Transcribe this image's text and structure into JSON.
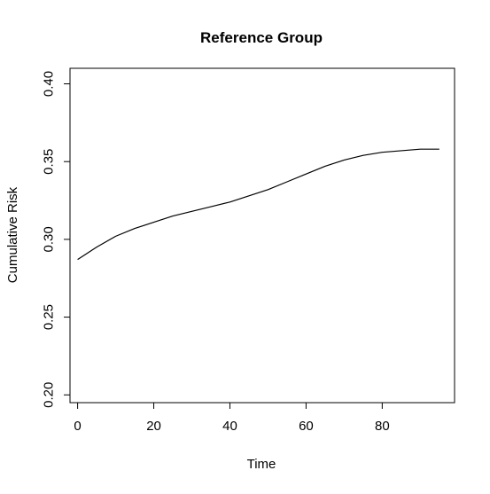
{
  "chart_data": {
    "type": "line",
    "title": "Reference Group",
    "xlabel": "Time",
    "ylabel": "Cumulative Risk",
    "xlim": [
      -2,
      99
    ],
    "ylim": [
      0.195,
      0.41
    ],
    "xticks": [
      0,
      20,
      40,
      60,
      80
    ],
    "yticks": [
      0.2,
      0.25,
      0.3,
      0.35,
      0.4
    ],
    "xtick_labels": [
      "0",
      "20",
      "40",
      "60",
      "80"
    ],
    "ytick_labels": [
      "0.20",
      "0.25",
      "0.30",
      "0.35",
      "0.40"
    ],
    "grid": false,
    "legend": "none",
    "series": [
      {
        "x": [
          0,
          5,
          10,
          15,
          20,
          25,
          30,
          35,
          40,
          45,
          50,
          55,
          60,
          65,
          70,
          75,
          80,
          85,
          90,
          95
        ],
        "y": [
          0.287,
          0.295,
          0.302,
          0.307,
          0.311,
          0.315,
          0.318,
          0.321,
          0.324,
          0.328,
          0.332,
          0.337,
          0.342,
          0.347,
          0.351,
          0.354,
          0.356,
          0.357,
          0.358,
          0.358
        ],
        "color": "#000000"
      }
    ]
  }
}
